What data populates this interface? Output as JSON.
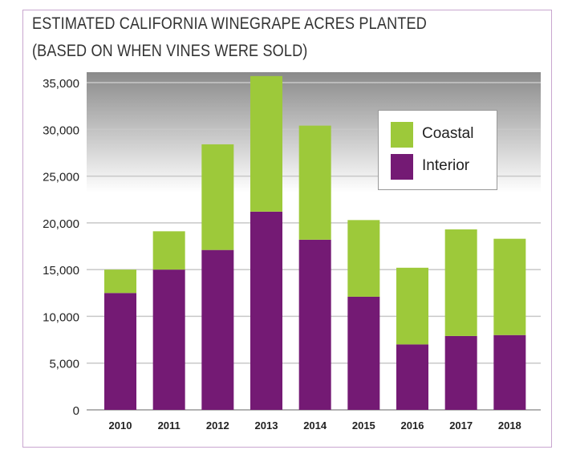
{
  "chart_data": {
    "type": "bar",
    "stacked": true,
    "title": "ESTIMATED CALIFORNIA WINEGRAPE ACRES PLANTED",
    "subtitle": "(BASED ON WHEN VINES WERE SOLD)",
    "xlabel": "",
    "ylabel": "",
    "categories": [
      "2010",
      "2011",
      "2012",
      "2013",
      "2014",
      "2015",
      "2016",
      "2017",
      "2018"
    ],
    "series": [
      {
        "name": "Interior",
        "color": "#741a74",
        "values": [
          12500,
          15000,
          17100,
          21200,
          18200,
          12100,
          7000,
          7900,
          8000
        ]
      },
      {
        "name": "Coastal",
        "color": "#9dc93a",
        "values": [
          2500,
          4100,
          11300,
          14500,
          12200,
          8200,
          8200,
          11400,
          10300
        ]
      }
    ],
    "ylim": [
      0,
      35000
    ],
    "yticks": [
      "0",
      "5,000",
      "10,000",
      "15,000",
      "20,000",
      "25,000",
      "30,000",
      "35,000"
    ],
    "grid": true,
    "legend": "top-right",
    "legend_order": [
      "Coastal",
      "Interior"
    ]
  }
}
